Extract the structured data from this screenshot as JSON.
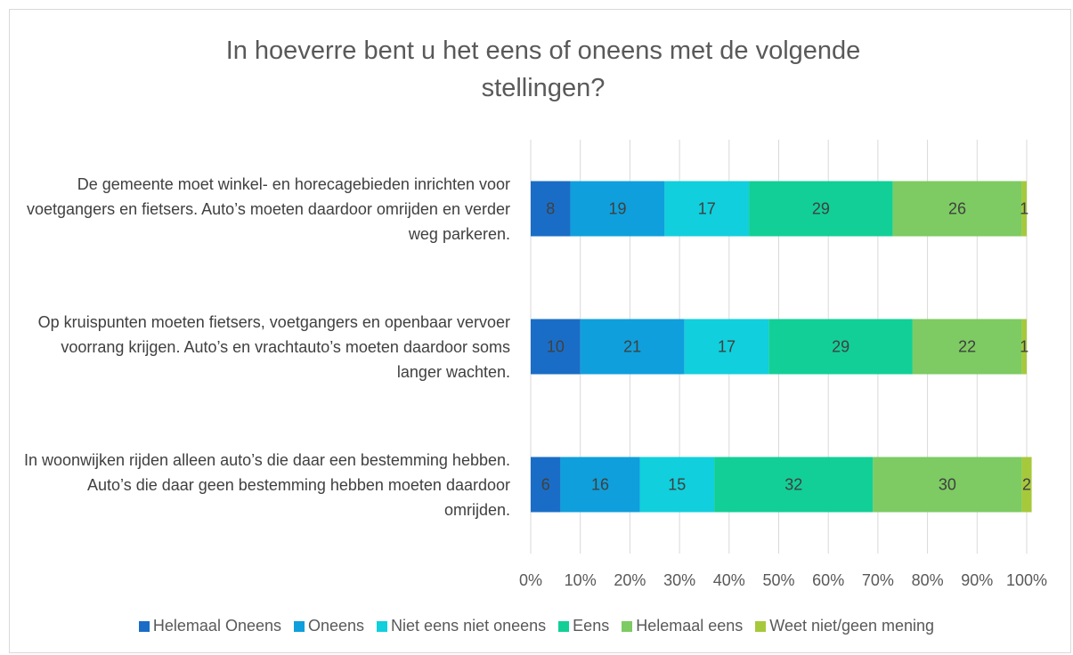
{
  "chart_data": {
    "type": "stacked-bar-horizontal",
    "title": "In hoeverre bent u het eens of oneens met de volgende stellingen?",
    "categories": [
      "De gemeente moet winkel- en horecagebieden inrichten voor voetgangers en fietsers. Auto’s moeten daardoor omrijden en verder weg parkeren.",
      "Op kruispunten moeten fietsers, voetgangers en openbaar vervoer voorrang krijgen. Auto’s en vrachtauto’s moeten daardoor soms langer wachten.",
      "In woonwijken rijden alleen auto’s die daar een bestemming hebben. Auto’s die daar geen bestemming hebben moeten daardoor omrijden."
    ],
    "series": [
      {
        "name": "Helemaal Oneens",
        "color": "#1a6dc6",
        "values": [
          8,
          10,
          6
        ]
      },
      {
        "name": "Oneens",
        "color": "#0f9fdc",
        "values": [
          19,
          21,
          16
        ]
      },
      {
        "name": "Niet eens niet oneens",
        "color": "#11cfdc",
        "values": [
          17,
          17,
          15
        ]
      },
      {
        "name": "Eens",
        "color": "#12cf97",
        "values": [
          29,
          29,
          32
        ]
      },
      {
        "name": "Helemaal eens",
        "color": "#7dcb62",
        "values": [
          26,
          22,
          30
        ]
      },
      {
        "name": "Weet niet/geen mening",
        "color": "#a6c93c",
        "values": [
          1,
          1,
          2
        ]
      }
    ],
    "xlim": [
      0,
      100
    ],
    "xticks": [
      {
        "value": 0,
        "label": "0%"
      },
      {
        "value": 10,
        "label": "10%"
      },
      {
        "value": 20,
        "label": "20%"
      },
      {
        "value": 30,
        "label": "30%"
      },
      {
        "value": 40,
        "label": "40%"
      },
      {
        "value": 50,
        "label": "50%"
      },
      {
        "value": 60,
        "label": "60%"
      },
      {
        "value": 70,
        "label": "70%"
      },
      {
        "value": 80,
        "label": "80%"
      },
      {
        "value": 90,
        "label": "90%"
      },
      {
        "value": 100,
        "label": "100%"
      }
    ],
    "grid": true,
    "legend": "bottom"
  }
}
